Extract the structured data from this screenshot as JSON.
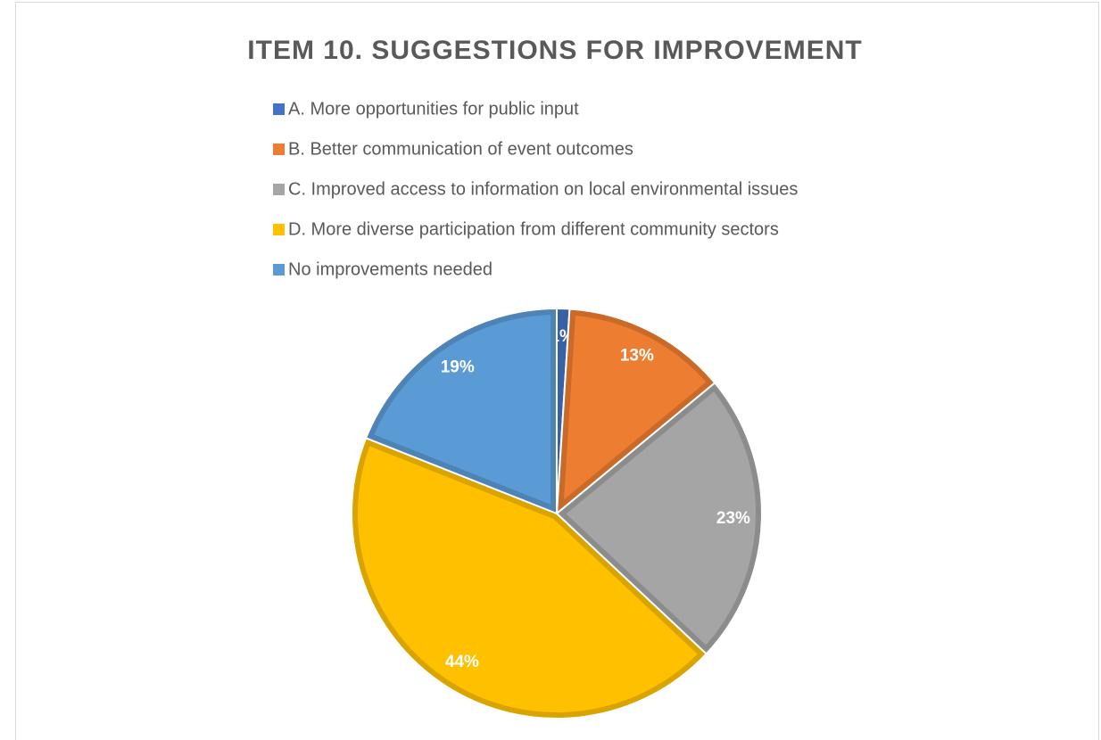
{
  "chart_data": {
    "type": "pie",
    "title": "ITEM 10. SUGGESTIONS FOR IMPROVEMENT",
    "categories": [
      "A. More opportunities for public input",
      "B. Better communication of event outcomes",
      "C. Improved access to information on local environmental issues",
      "D. More diverse participation from different community sectors",
      "No improvements needed"
    ],
    "values": [
      1,
      13,
      23,
      44,
      19
    ],
    "value_labels": [
      "1%",
      "13%",
      "23%",
      "44%",
      "19%"
    ],
    "colors": [
      "#4472c4",
      "#ed7d31",
      "#a5a5a5",
      "#ffc000",
      "#5b9bd5"
    ],
    "legend": "top"
  }
}
